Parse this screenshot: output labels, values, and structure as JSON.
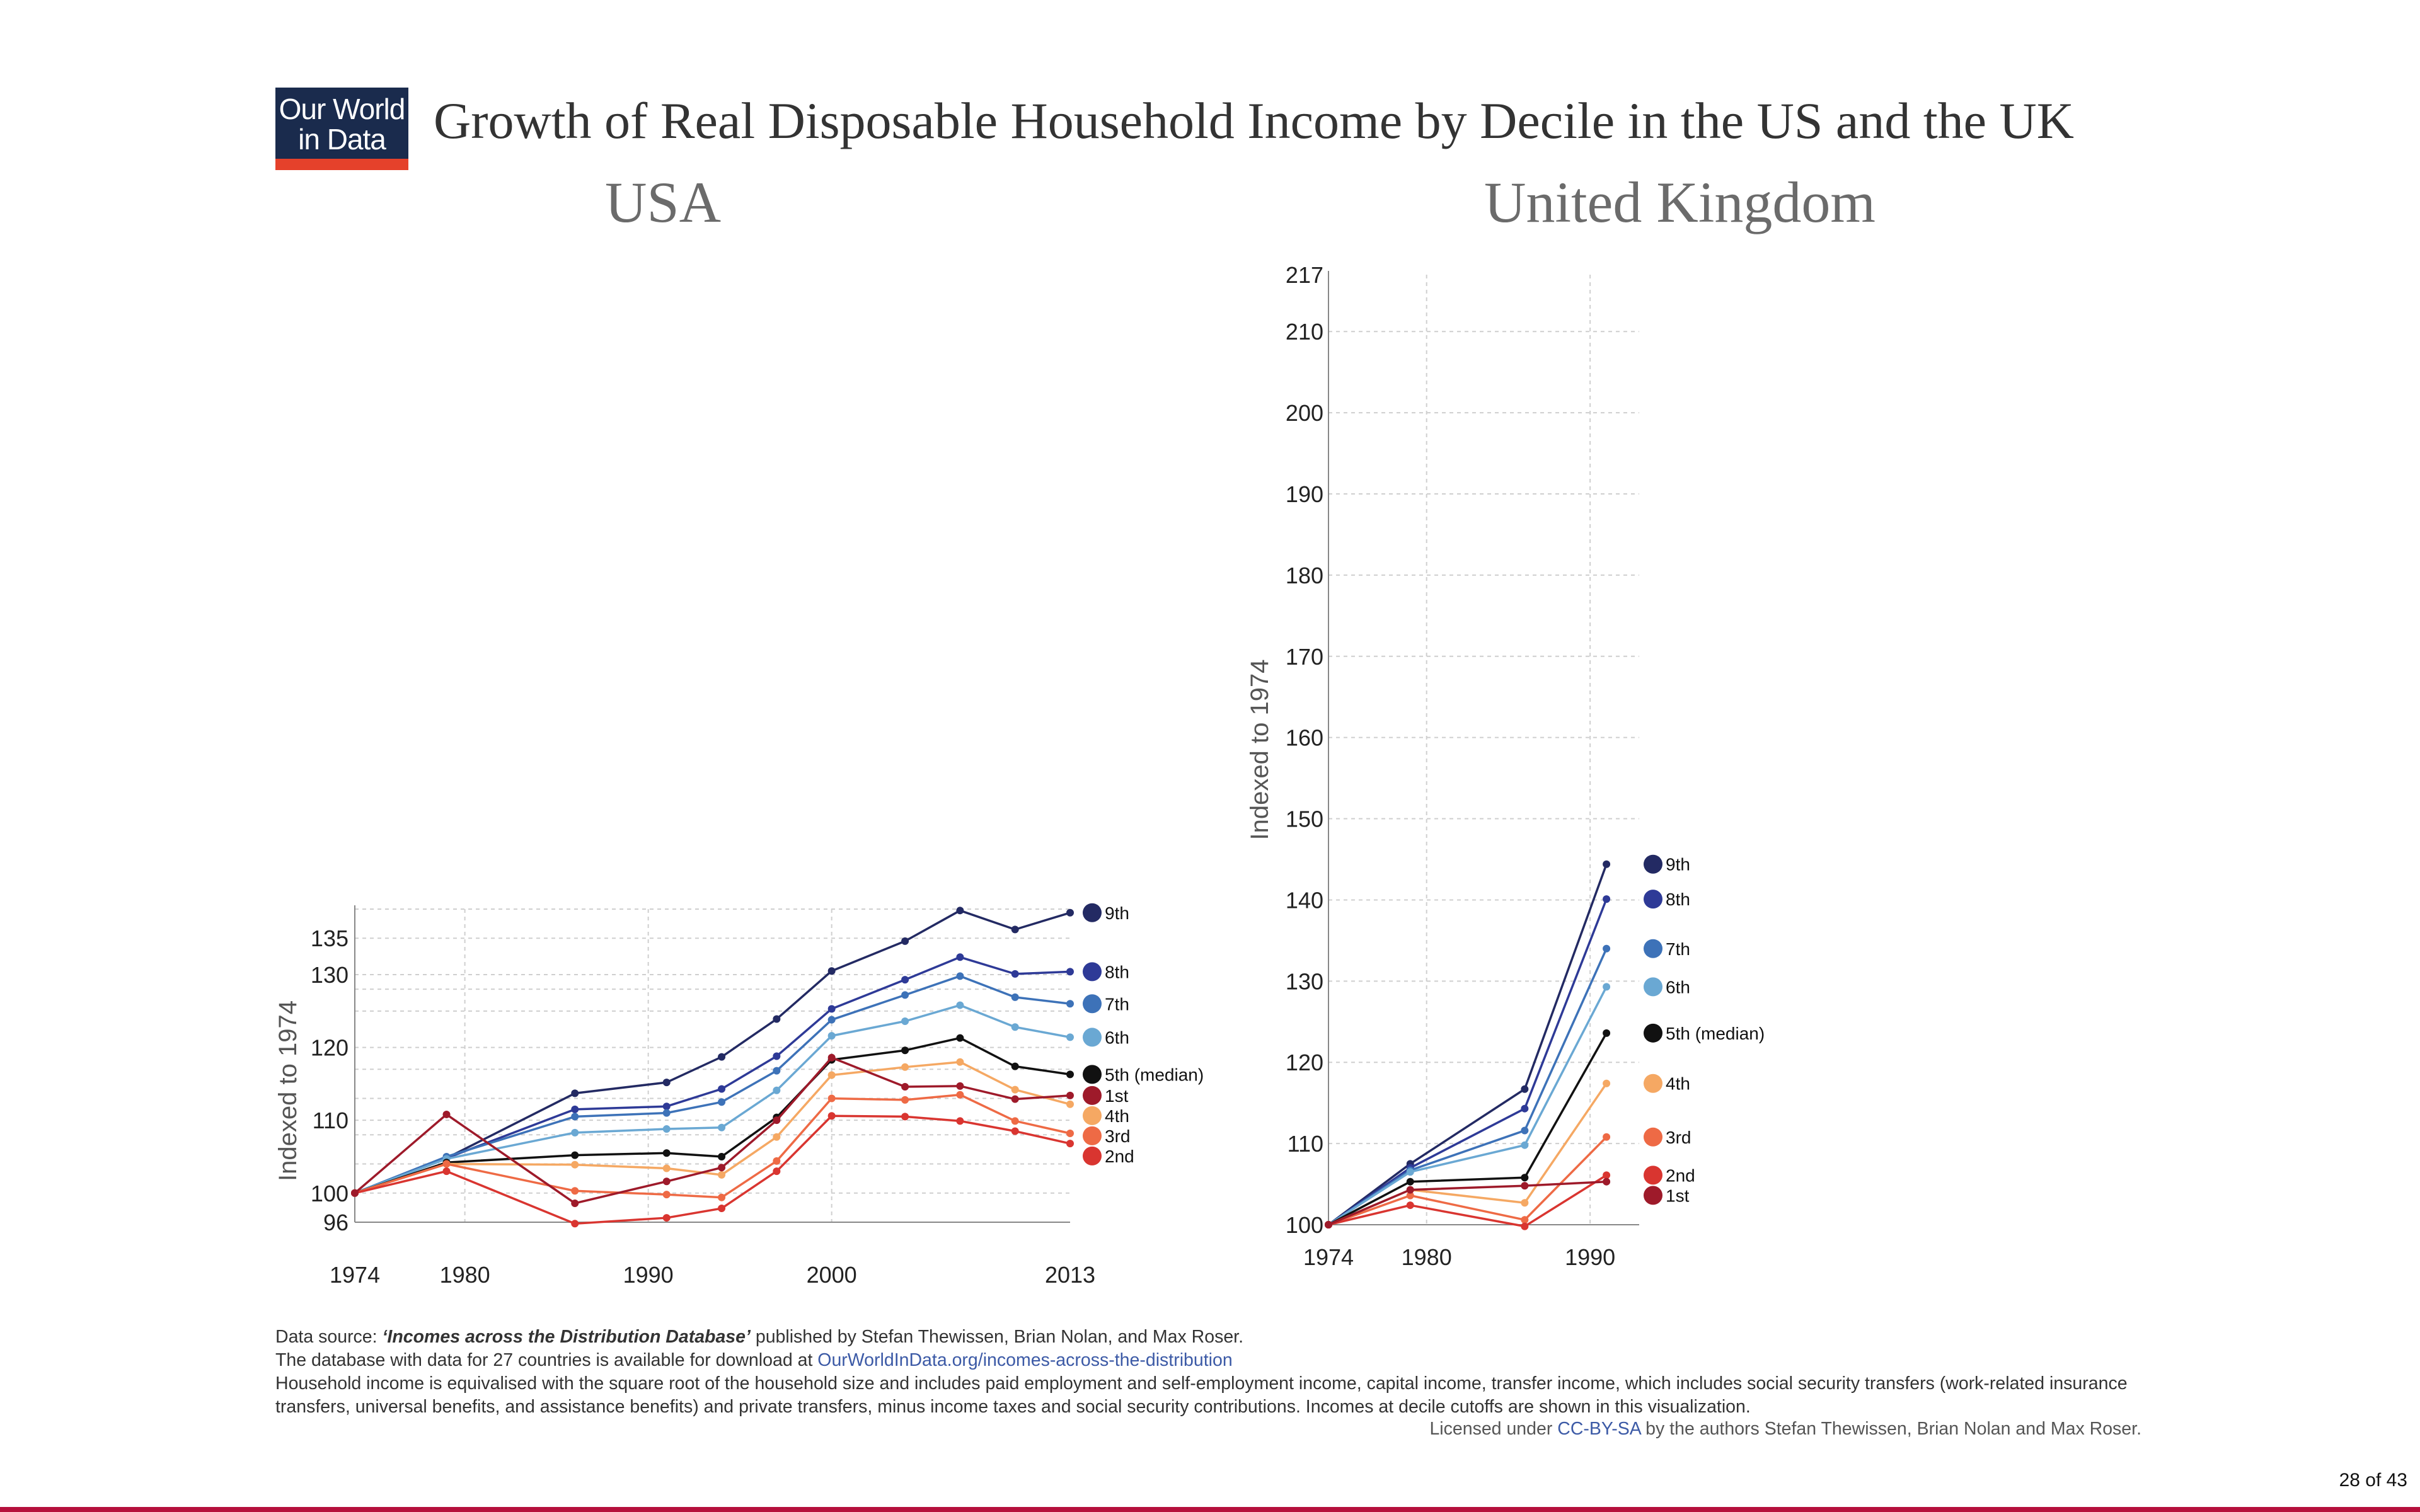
{
  "logo": {
    "line1": "Our World",
    "line2": "in Data"
  },
  "title": "Growth of Real Disposable Household Income by Decile in the US and the UK",
  "colors": {
    "d9": "#232a63",
    "d8": "#2e3a97",
    "d7": "#3d72b8",
    "d6": "#6aa8d3",
    "d5": "#111111",
    "d4": "#f5a863",
    "d3": "#ee6a45",
    "d2": "#d93530",
    "d1": "#9e1a2a"
  },
  "chart_data": [
    {
      "type": "line",
      "title": "USA",
      "ylabel": "Indexed to 1974",
      "xlim": [
        1974,
        2013
      ],
      "ylim": [
        96,
        139
      ],
      "xticks": [
        1974,
        1980,
        1990,
        2000,
        2013
      ],
      "yticks": [
        96,
        100,
        110,
        120,
        130,
        135
      ],
      "x": [
        1974,
        1979,
        1986,
        1991,
        1994,
        1997,
        2000,
        2004,
        2007,
        2010,
        2013
      ],
      "series": [
        {
          "name": "9th",
          "key": "d9",
          "values": [
            100,
            104.8,
            113.7,
            115.2,
            118.7,
            123.9,
            130.5,
            134.6,
            138.8,
            136.2,
            138.5
          ]
        },
        {
          "name": "8th",
          "key": "d8",
          "values": [
            100,
            104.8,
            111.5,
            111.9,
            114.3,
            118.8,
            125.3,
            129.3,
            132.4,
            130.1,
            130.4
          ]
        },
        {
          "name": "7th",
          "key": "d7",
          "values": [
            100,
            105.0,
            110.5,
            111.0,
            112.5,
            116.8,
            123.8,
            127.2,
            129.8,
            126.9,
            126.0
          ]
        },
        {
          "name": "6th",
          "key": "d6",
          "values": [
            100,
            104.7,
            108.3,
            108.8,
            109.0,
            114.1,
            121.6,
            123.6,
            125.8,
            122.8,
            121.4
          ]
        },
        {
          "name": "5th (median)",
          "key": "d5",
          "values": [
            100,
            104.2,
            105.2,
            105.5,
            105.0,
            110.4,
            118.3,
            119.6,
            121.3,
            117.4,
            116.3
          ]
        },
        {
          "name": "4th",
          "key": "d4",
          "values": [
            100,
            104.0,
            103.9,
            103.4,
            102.5,
            107.7,
            116.2,
            117.3,
            118.0,
            114.2,
            112.2
          ]
        },
        {
          "name": "3rd",
          "key": "d3",
          "values": [
            100,
            104.0,
            100.3,
            99.8,
            99.4,
            104.4,
            113.0,
            112.8,
            113.5,
            109.9,
            108.2
          ]
        },
        {
          "name": "2nd",
          "key": "d2",
          "values": [
            100,
            103.0,
            95.8,
            96.6,
            97.9,
            103.0,
            110.6,
            110.5,
            109.9,
            108.5,
            106.8
          ]
        },
        {
          "name": "1st",
          "key": "d1",
          "values": [
            100,
            110.8,
            98.6,
            101.6,
            103.5,
            110.0,
            118.6,
            114.6,
            114.7,
            112.9,
            113.4
          ]
        }
      ]
    },
    {
      "type": "line",
      "title": "United Kingdom",
      "ylabel": "Indexed to 1974",
      "xlim": [
        1974,
        1993
      ],
      "ylim": [
        100,
        217
      ],
      "xticks": [
        1974,
        1980,
        1990
      ],
      "yticks": [
        100,
        110,
        120,
        130,
        140,
        150,
        160,
        170,
        180,
        190,
        200,
        210,
        217
      ],
      "x": [
        1974,
        1979,
        1986,
        1991
      ],
      "series": [
        {
          "name": "9th",
          "key": "d9",
          "values": [
            100,
            107.5,
            116.7,
            144.4
          ]
        },
        {
          "name": "8th",
          "key": "d8",
          "values": [
            100,
            107.0,
            114.3,
            140.1
          ]
        },
        {
          "name": "7th",
          "key": "d7",
          "values": [
            100,
            106.7,
            111.6,
            134.0
          ]
        },
        {
          "name": "6th",
          "key": "d6",
          "values": [
            100,
            106.5,
            109.8,
            129.3
          ]
        },
        {
          "name": "5th (median)",
          "key": "d5",
          "values": [
            100,
            105.3,
            105.8,
            123.6
          ]
        },
        {
          "name": "4th",
          "key": "d4",
          "values": [
            100,
            104.3,
            102.7,
            117.4
          ]
        },
        {
          "name": "3rd",
          "key": "d3",
          "values": [
            100,
            103.6,
            100.6,
            110.8
          ]
        },
        {
          "name": "2nd",
          "key": "d2",
          "values": [
            100,
            102.4,
            99.8,
            106.1
          ]
        },
        {
          "name": "1st",
          "key": "d1",
          "values": [
            100,
            104.3,
            104.8,
            105.3
          ]
        }
      ]
    }
  ],
  "footer": {
    "source_prefix": "Data source: ",
    "source_name": "‘Incomes across the Distribution Database’",
    "source_suffix": " published by Stefan Thewissen, Brian Nolan, and Max Roser.",
    "db_prefix": "The database with data for 27 countries is available for download at ",
    "db_link": "OurWorldInData.org/incomes-across-the-distribution",
    "note": "Household income is equivalised with the square root of the household size and includes paid employment and self-employment income, capital income, transfer income, which includes social security transfers (work-related insurance transfers, universal benefits, and assistance benefits) and private transfers, minus income taxes and social security contributions. Incomes at decile cutoffs are shown in this visualization.",
    "license_prefix": "Licensed under ",
    "license_link": "CC-BY-SA",
    "license_suffix": " by the authors Stefan Thewissen, Brian Nolan and Max Roser."
  },
  "page": "28 of 43"
}
